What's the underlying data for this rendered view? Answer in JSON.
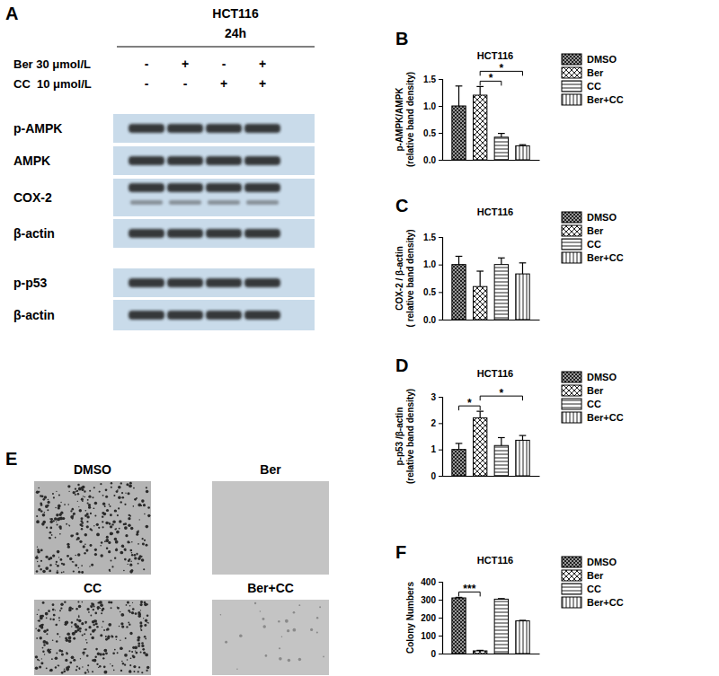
{
  "blot": {
    "panel": "A",
    "cell_line": "HCT116",
    "time": "24h",
    "treatments": [
      {
        "label": "Ber 30 μmol/L",
        "signs": [
          "-",
          "+",
          "-",
          "+"
        ]
      },
      {
        "label": "CC  10 μmol/L",
        "signs": [
          "-",
          "-",
          "+",
          "+"
        ]
      }
    ],
    "rows": [
      "p-AMPK",
      "AMPK",
      "COX-2",
      "β-actin",
      "p-p53",
      "β-actin"
    ]
  },
  "colony_images": {
    "panel": "E",
    "labels": [
      "DMSO",
      "Ber",
      "CC",
      "Ber+CC"
    ]
  },
  "chart_data": [
    {
      "type": "bar",
      "panel": "B",
      "title": "HCT116",
      "y_label": [
        "p-AMPK/AMPK",
        "(relative band density)"
      ],
      "categories": [
        null
      ],
      "legend": "right",
      "grid": false,
      "tick_labels": "y",
      "ylim": [
        0,
        1.5
      ],
      "yticks": [
        {
          "value": 0,
          "label": "0.0"
        },
        {
          "value": 0.5,
          "label": "0.5"
        },
        {
          "value": 1,
          "label": "1.0"
        },
        {
          "value": 1.5,
          "label": "1.5"
        }
      ],
      "series": [
        {
          "name": "DMSO",
          "color": "#9a9a9a",
          "values": [
            1.0
          ],
          "errors": [
            0.37
          ]
        },
        {
          "name": "Ber",
          "color": "#ffffff",
          "values": [
            1.2
          ],
          "errors": [
            0.16
          ]
        },
        {
          "name": "CC",
          "color": "#ffffff",
          "values": [
            0.42
          ],
          "errors": [
            0.07
          ]
        },
        {
          "name": "Ber+CC",
          "color": "#ffffff",
          "values": [
            0.26
          ],
          "errors": [
            0.02
          ]
        }
      ],
      "annotations": [
        {
          "text": "*",
          "from": "Ber",
          "to": "CC"
        },
        {
          "text": "*",
          "from": "Ber",
          "to": "Ber+CC"
        }
      ]
    },
    {
      "type": "bar",
      "panel": "C",
      "title": "HCT116",
      "y_label": [
        "COX-2 / β-actin",
        "( relative band density)"
      ],
      "categories": [
        null
      ],
      "legend": "right",
      "grid": false,
      "tick_labels": "y",
      "ylim": [
        0,
        1.5
      ],
      "yticks": [
        {
          "value": 0,
          "label": "0.0"
        },
        {
          "value": 0.5,
          "label": "0.5"
        },
        {
          "value": 1,
          "label": "1.0"
        },
        {
          "value": 1.5,
          "label": "1.5"
        }
      ],
      "series": [
        {
          "name": "DMSO",
          "color": "#9a9a9a",
          "values": [
            1.0
          ],
          "errors": [
            0.15
          ]
        },
        {
          "name": "Ber",
          "color": "#ffffff",
          "values": [
            0.6
          ],
          "errors": [
            0.28
          ]
        },
        {
          "name": "CC",
          "color": "#ffffff",
          "values": [
            1.0
          ],
          "errors": [
            0.12
          ]
        },
        {
          "name": "Ber+CC",
          "color": "#ffffff",
          "values": [
            0.83
          ],
          "errors": [
            0.2
          ]
        }
      ],
      "annotations": []
    },
    {
      "type": "bar",
      "panel": "D",
      "title": "HCT116",
      "y_label": [
        "p-p53 /β-actin",
        "(relative band density)"
      ],
      "categories": [
        null
      ],
      "legend": "right",
      "grid": false,
      "tick_labels": "y",
      "ylim": [
        0,
        3
      ],
      "yticks": [
        0,
        1,
        2,
        3
      ],
      "series": [
        {
          "name": "DMSO",
          "color": "#9a9a9a",
          "values": [
            1.0
          ],
          "errors": [
            0.23
          ]
        },
        {
          "name": "Ber",
          "color": "#ffffff",
          "values": [
            2.2
          ],
          "errors": [
            0.25
          ]
        },
        {
          "name": "CC",
          "color": "#ffffff",
          "values": [
            1.15
          ],
          "errors": [
            0.3
          ]
        },
        {
          "name": "Ber+CC",
          "color": "#ffffff",
          "values": [
            1.35
          ],
          "errors": [
            0.18
          ]
        }
      ],
      "annotations": [
        {
          "text": "*",
          "from": "DMSO",
          "to": "Ber"
        },
        {
          "text": "*",
          "from": "Ber",
          "to": "Ber+CC"
        }
      ]
    },
    {
      "type": "bar",
      "panel": "F",
      "title": "HCT116",
      "y_label": [
        "Colony Numbers"
      ],
      "categories": [
        null
      ],
      "legend": "right",
      "grid": false,
      "tick_labels": "y",
      "ylim": [
        0,
        400
      ],
      "yticks": [
        0,
        100,
        200,
        300,
        400
      ],
      "series": [
        {
          "name": "DMSO",
          "color": "#9a9a9a",
          "values": [
            310
          ],
          "errors": [
            3
          ]
        },
        {
          "name": "Ber",
          "color": "#ffffff",
          "values": [
            15
          ],
          "errors": [
            3
          ]
        },
        {
          "name": "CC",
          "color": "#ffffff",
          "values": [
            303
          ],
          "errors": [
            3
          ]
        },
        {
          "name": "Ber+CC",
          "color": "#ffffff",
          "values": [
            182
          ],
          "errors": [
            3
          ]
        }
      ],
      "annotations": [
        {
          "text": "***",
          "from": "DMSO",
          "to": "Ber"
        }
      ]
    }
  ]
}
